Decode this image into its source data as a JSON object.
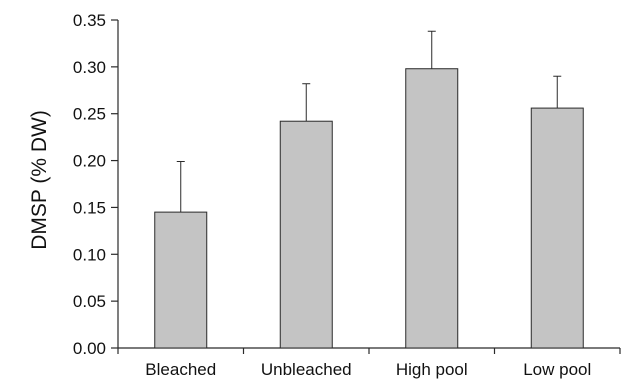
{
  "chart_data": {
    "type": "bar",
    "title": "",
    "xlabel": "",
    "ylabel": "DMSP (% DW)",
    "categories": [
      "Bleached",
      "Unbleached",
      "High pool",
      "Low pool"
    ],
    "values": [
      0.145,
      0.242,
      0.298,
      0.256
    ],
    "error_upper": [
      0.199,
      0.282,
      0.338,
      0.29
    ],
    "ylim": [
      0,
      0.35
    ],
    "yticks": [
      "0.00",
      "0.05",
      "0.10",
      "0.15",
      "0.20",
      "0.25",
      "0.30",
      "0.35"
    ],
    "grid": false,
    "legend": "none",
    "colors": {
      "bar_fill": "#c4c4c4",
      "bar_stroke": "#2a2a2a",
      "axis": "#2a2a2a",
      "text": "#111111"
    }
  }
}
